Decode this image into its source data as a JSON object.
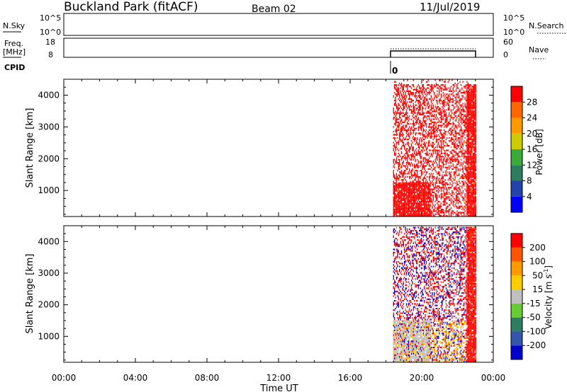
{
  "header": {
    "station": "Buckland Park (fitACF)",
    "beam": "Beam 02",
    "date": "11/Jul/2019"
  },
  "top_panels": {
    "nsky": {
      "label": "N.Sky",
      "ticks": [
        "10^5",
        "10^0"
      ]
    },
    "nsearch": {
      "label": "N.Search",
      "ticks": [
        "10^5",
        "10^0"
      ]
    },
    "freq": {
      "label": "Freq.",
      "unit": "[MHz]",
      "ticks": [
        "18",
        "8"
      ]
    },
    "nave": {
      "label": "Nave",
      "ticks": [
        "60",
        "0"
      ]
    },
    "cpid": {
      "label": "CPID",
      "value": "0"
    }
  },
  "chart_data": [
    {
      "type": "heatmap",
      "name": "power",
      "ylabel": "Slant Range [km]",
      "xlabel": "Time UT",
      "x_ticks": [
        "00:00",
        "04:00",
        "08:00",
        "12:00",
        "16:00",
        "20:00",
        "00:00"
      ],
      "x_range_hours": [
        0,
        24
      ],
      "data_range_hours": [
        18.4,
        23.1
      ],
      "ylim": [
        180,
        4500
      ],
      "y_ticks": [
        1000,
        2000,
        3000,
        4000
      ],
      "colorbar": {
        "label": "Power [dB]",
        "tick_labels": [
          "4",
          "8",
          "12",
          "16",
          "20",
          "24",
          "28"
        ],
        "colors": [
          "#0000ff",
          "#2244aa",
          "#2e7d60",
          "#3aaa3a",
          "#cccc00",
          "#ff9900",
          "#ff6600",
          "#ff0000"
        ]
      },
      "dominant_value": "28+ dB (red) across range 300-4500 km"
    },
    {
      "type": "heatmap",
      "name": "velocity",
      "ylabel": "Slant Range [km]",
      "xlabel": "Time UT",
      "x_ticks": [
        "00:00",
        "04:00",
        "08:00",
        "12:00",
        "16:00",
        "20:00",
        "00:00"
      ],
      "x_range_hours": [
        0,
        24
      ],
      "data_range_hours": [
        18.4,
        23.1
      ],
      "ylim": [
        180,
        4500
      ],
      "y_ticks": [
        1000,
        2000,
        3000,
        4000
      ],
      "colorbar": {
        "label": "Velocity [m s^-1]",
        "tick_labels": [
          "200",
          "100",
          "50",
          "15",
          "-15",
          "-50",
          "-100",
          "-200"
        ],
        "colors": [
          "#0000cc",
          "#3355aa",
          "#2e7d60",
          "#66cc33",
          "#c0c0c0",
          "#ffcc00",
          "#ff9900",
          "#ff5500",
          "#ff0000"
        ]
      }
    }
  ],
  "colors": {
    "ground_scatter": "#c0c0c0",
    "high_power": "#ff0000",
    "negative_velocity": "#ff0000",
    "positive_velocity": "#0000cc"
  }
}
